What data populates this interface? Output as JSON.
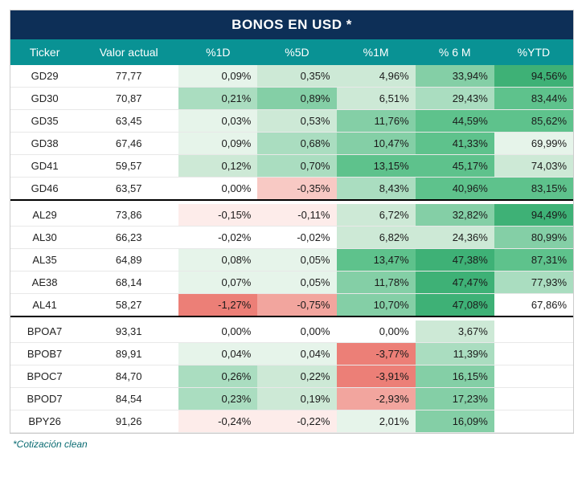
{
  "title": "BONOS EN USD *",
  "footnote": "*Cotización clean",
  "columns": [
    "Ticker",
    "Valor actual",
    "%1D",
    "%5D",
    "%1M",
    "% 6 M",
    "%YTD"
  ],
  "heatmap_palette_note": "green shades for positive magnitude, red/pink for negative, white for neutral/empty",
  "colors": {
    "title_bg": "#0d2f57",
    "header_bg": "#099294",
    "header_fg": "#ffffff",
    "text": "#1a1a1a",
    "footnote_fg": "#0a6b72",
    "row_border": "#e8e8e8",
    "group_sep": "#000000",
    "g0": "#ffffff",
    "g1": "#e6f4ea",
    "g2": "#cde9d6",
    "g3": "#aaddc0",
    "g4": "#84cfa6",
    "g5": "#5ec28c",
    "g6": "#3eb176",
    "r1": "#fdecea",
    "r2": "#f8c9c4",
    "r3": "#f2a59e",
    "r4": "#ec7f77"
  },
  "groups": [
    {
      "rows": [
        {
          "ticker": "GD29",
          "valor": "77,77",
          "cells": [
            {
              "t": "0,09%",
              "c": "g1"
            },
            {
              "t": "0,35%",
              "c": "g2"
            },
            {
              "t": "4,96%",
              "c": "g2"
            },
            {
              "t": "33,94%",
              "c": "g4"
            },
            {
              "t": "94,56%",
              "c": "g6"
            }
          ]
        },
        {
          "ticker": "GD30",
          "valor": "70,87",
          "cells": [
            {
              "t": "0,21%",
              "c": "g3"
            },
            {
              "t": "0,89%",
              "c": "g4"
            },
            {
              "t": "6,51%",
              "c": "g2"
            },
            {
              "t": "29,43%",
              "c": "g3"
            },
            {
              "t": "83,44%",
              "c": "g5"
            }
          ]
        },
        {
          "ticker": "GD35",
          "valor": "63,45",
          "cells": [
            {
              "t": "0,03%",
              "c": "g1"
            },
            {
              "t": "0,53%",
              "c": "g2"
            },
            {
              "t": "11,76%",
              "c": "g4"
            },
            {
              "t": "44,59%",
              "c": "g5"
            },
            {
              "t": "85,62%",
              "c": "g5"
            }
          ]
        },
        {
          "ticker": "GD38",
          "valor": "67,46",
          "cells": [
            {
              "t": "0,09%",
              "c": "g1"
            },
            {
              "t": "0,68%",
              "c": "g3"
            },
            {
              "t": "10,47%",
              "c": "g4"
            },
            {
              "t": "41,33%",
              "c": "g5"
            },
            {
              "t": "69,99%",
              "c": "g1"
            }
          ]
        },
        {
          "ticker": "GD41",
          "valor": "59,57",
          "cells": [
            {
              "t": "0,12%",
              "c": "g2"
            },
            {
              "t": "0,70%",
              "c": "g3"
            },
            {
              "t": "13,15%",
              "c": "g5"
            },
            {
              "t": "45,17%",
              "c": "g5"
            },
            {
              "t": "74,03%",
              "c": "g2"
            }
          ]
        },
        {
          "ticker": "GD46",
          "valor": "63,57",
          "cells": [
            {
              "t": "0,00%",
              "c": "g0"
            },
            {
              "t": "-0,35%",
              "c": "r2"
            },
            {
              "t": "8,43%",
              "c": "g3"
            },
            {
              "t": "40,96%",
              "c": "g5"
            },
            {
              "t": "83,15%",
              "c": "g5"
            }
          ]
        }
      ]
    },
    {
      "rows": [
        {
          "ticker": "AL29",
          "valor": "73,86",
          "cells": [
            {
              "t": "-0,15%",
              "c": "r1"
            },
            {
              "t": "-0,11%",
              "c": "r1"
            },
            {
              "t": "6,72%",
              "c": "g2"
            },
            {
              "t": "32,82%",
              "c": "g4"
            },
            {
              "t": "94,49%",
              "c": "g6"
            }
          ]
        },
        {
          "ticker": "AL30",
          "valor": "66,23",
          "cells": [
            {
              "t": "-0,02%",
              "c": "g0"
            },
            {
              "t": "-0,02%",
              "c": "g0"
            },
            {
              "t": "6,82%",
              "c": "g2"
            },
            {
              "t": "24,36%",
              "c": "g2"
            },
            {
              "t": "80,99%",
              "c": "g4"
            }
          ]
        },
        {
          "ticker": "AL35",
          "valor": "64,89",
          "cells": [
            {
              "t": "0,08%",
              "c": "g1"
            },
            {
              "t": "0,05%",
              "c": "g1"
            },
            {
              "t": "13,47%",
              "c": "g5"
            },
            {
              "t": "47,38%",
              "c": "g6"
            },
            {
              "t": "87,31%",
              "c": "g5"
            }
          ]
        },
        {
          "ticker": "AE38",
          "valor": "68,14",
          "cells": [
            {
              "t": "0,07%",
              "c": "g1"
            },
            {
              "t": "0,05%",
              "c": "g1"
            },
            {
              "t": "11,78%",
              "c": "g4"
            },
            {
              "t": "47,47%",
              "c": "g6"
            },
            {
              "t": "77,93%",
              "c": "g3"
            }
          ]
        },
        {
          "ticker": "AL41",
          "valor": "58,27",
          "cells": [
            {
              "t": "-1,27%",
              "c": "r4"
            },
            {
              "t": "-0,75%",
              "c": "r3"
            },
            {
              "t": "10,70%",
              "c": "g4"
            },
            {
              "t": "47,08%",
              "c": "g6"
            },
            {
              "t": "67,86%",
              "c": "g0"
            }
          ]
        }
      ]
    },
    {
      "rows": [
        {
          "ticker": "BPOA7",
          "valor": "93,31",
          "cells": [
            {
              "t": "0,00%",
              "c": "g0"
            },
            {
              "t": "0,00%",
              "c": "g0"
            },
            {
              "t": "0,00%",
              "c": "g0"
            },
            {
              "t": "3,67%",
              "c": "g2"
            },
            {
              "t": "",
              "c": "g0"
            }
          ]
        },
        {
          "ticker": "BPOB7",
          "valor": "89,91",
          "cells": [
            {
              "t": "0,04%",
              "c": "g1"
            },
            {
              "t": "0,04%",
              "c": "g1"
            },
            {
              "t": "-3,77%",
              "c": "r4"
            },
            {
              "t": "11,39%",
              "c": "g3"
            },
            {
              "t": "",
              "c": "g0"
            }
          ]
        },
        {
          "ticker": "BPOC7",
          "valor": "84,70",
          "cells": [
            {
              "t": "0,26%",
              "c": "g3"
            },
            {
              "t": "0,22%",
              "c": "g2"
            },
            {
              "t": "-3,91%",
              "c": "r4"
            },
            {
              "t": "16,15%",
              "c": "g4"
            },
            {
              "t": "",
              "c": "g0"
            }
          ]
        },
        {
          "ticker": "BPOD7",
          "valor": "84,54",
          "cells": [
            {
              "t": "0,23%",
              "c": "g3"
            },
            {
              "t": "0,19%",
              "c": "g2"
            },
            {
              "t": "-2,93%",
              "c": "r3"
            },
            {
              "t": "17,23%",
              "c": "g4"
            },
            {
              "t": "",
              "c": "g0"
            }
          ]
        },
        {
          "ticker": "BPY26",
          "valor": "91,26",
          "cells": [
            {
              "t": "-0,24%",
              "c": "r1"
            },
            {
              "t": "-0,22%",
              "c": "r1"
            },
            {
              "t": "2,01%",
              "c": "g1"
            },
            {
              "t": "16,09%",
              "c": "g4"
            },
            {
              "t": "",
              "c": "g0"
            }
          ]
        }
      ]
    }
  ]
}
